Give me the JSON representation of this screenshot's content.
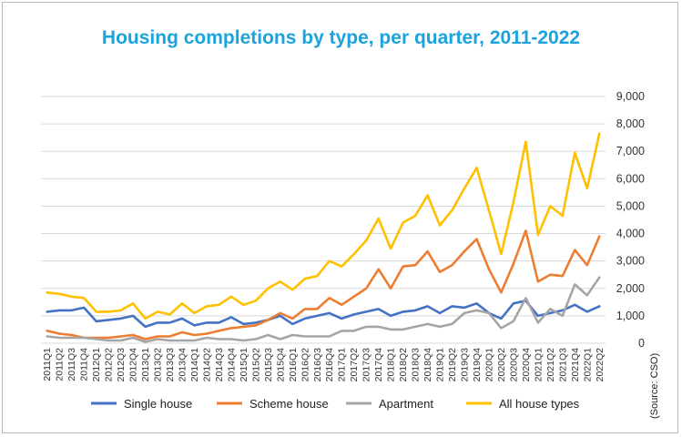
{
  "chart_data": {
    "type": "line",
    "title": "Housing completions by type, per quarter, 2011-2022",
    "source": "(Source: CSO)",
    "ylim": [
      0,
      9000
    ],
    "yticks": [
      "0",
      "1,000",
      "2,000",
      "3,000",
      "4,000",
      "5,000",
      "6,000",
      "7,000",
      "8,000",
      "9,000"
    ],
    "grid": true,
    "legend_position": "bottom",
    "categories": [
      "2011Q1",
      "2011Q2",
      "2011Q3",
      "2011Q4",
      "2012Q1",
      "2012Q2",
      "2012Q3",
      "2012Q4",
      "2013Q1",
      "2013Q2",
      "2013Q3",
      "2013Q4",
      "2014Q1",
      "2014Q2",
      "2014Q3",
      "2014Q4",
      "2015Q1",
      "2015Q2",
      "2015Q3",
      "2015Q4",
      "2016Q1",
      "2016Q2",
      "2016Q3",
      "2016Q4",
      "2017Q1",
      "2017Q2",
      "2017Q3",
      "2017Q4",
      "2018Q1",
      "2018Q2",
      "2018Q3",
      "2018Q4",
      "2019Q1",
      "2019Q2",
      "2019Q3",
      "2019Q4",
      "2020Q1",
      "2020Q2",
      "2020Q3",
      "2020Q4",
      "2021Q1",
      "2021Q2",
      "2021Q3",
      "2021Q4",
      "2022Q1",
      "2022Q2"
    ],
    "series": [
      {
        "name": "Single house",
        "color": "#4472c4",
        "values": [
          1150,
          1200,
          1200,
          1300,
          800,
          850,
          900,
          1000,
          600,
          750,
          750,
          900,
          650,
          750,
          750,
          950,
          700,
          750,
          850,
          1000,
          700,
          900,
          1000,
          1100,
          900,
          1050,
          1150,
          1250,
          1000,
          1150,
          1200,
          1350,
          1100,
          1350,
          1300,
          1450,
          1100,
          900,
          1450,
          1550,
          1000,
          1100,
          1200,
          1400,
          1150,
          1350
        ]
      },
      {
        "name": "Scheme house",
        "color": "#ed7d31",
        "values": [
          450,
          350,
          300,
          200,
          200,
          200,
          250,
          300,
          150,
          250,
          250,
          400,
          300,
          350,
          450,
          550,
          600,
          650,
          850,
          1100,
          900,
          1250,
          1250,
          1650,
          1400,
          1700,
          2000,
          2700,
          2000,
          2800,
          2850,
          3350,
          2600,
          2850,
          3350,
          3800,
          2700,
          1850,
          2900,
          4100,
          2250,
          2500,
          2450,
          3400,
          2850,
          3900
        ]
      },
      {
        "name": "Apartment",
        "color": "#a5a5a5",
        "values": [
          250,
          200,
          200,
          200,
          150,
          100,
          100,
          200,
          50,
          150,
          100,
          100,
          100,
          200,
          150,
          150,
          100,
          150,
          300,
          150,
          300,
          250,
          250,
          250,
          450,
          450,
          600,
          600,
          500,
          500,
          600,
          700,
          600,
          700,
          1100,
          1200,
          1100,
          550,
          800,
          1650,
          750,
          1250,
          1000,
          2150,
          1750,
          2400
        ]
      },
      {
        "name": "All house types",
        "color": "#ffc000",
        "values": [
          1850,
          1800,
          1700,
          1650,
          1150,
          1150,
          1200,
          1450,
          900,
          1150,
          1050,
          1450,
          1100,
          1350,
          1400,
          1700,
          1400,
          1550,
          2000,
          2250,
          1950,
          2350,
          2450,
          3000,
          2800,
          3250,
          3750,
          4550,
          3450,
          4400,
          4650,
          5400,
          4300,
          4850,
          5650,
          6400,
          4850,
          3250,
          5150,
          7350,
          3950,
          5000,
          4650,
          6950,
          5650,
          7650
        ]
      }
    ]
  }
}
